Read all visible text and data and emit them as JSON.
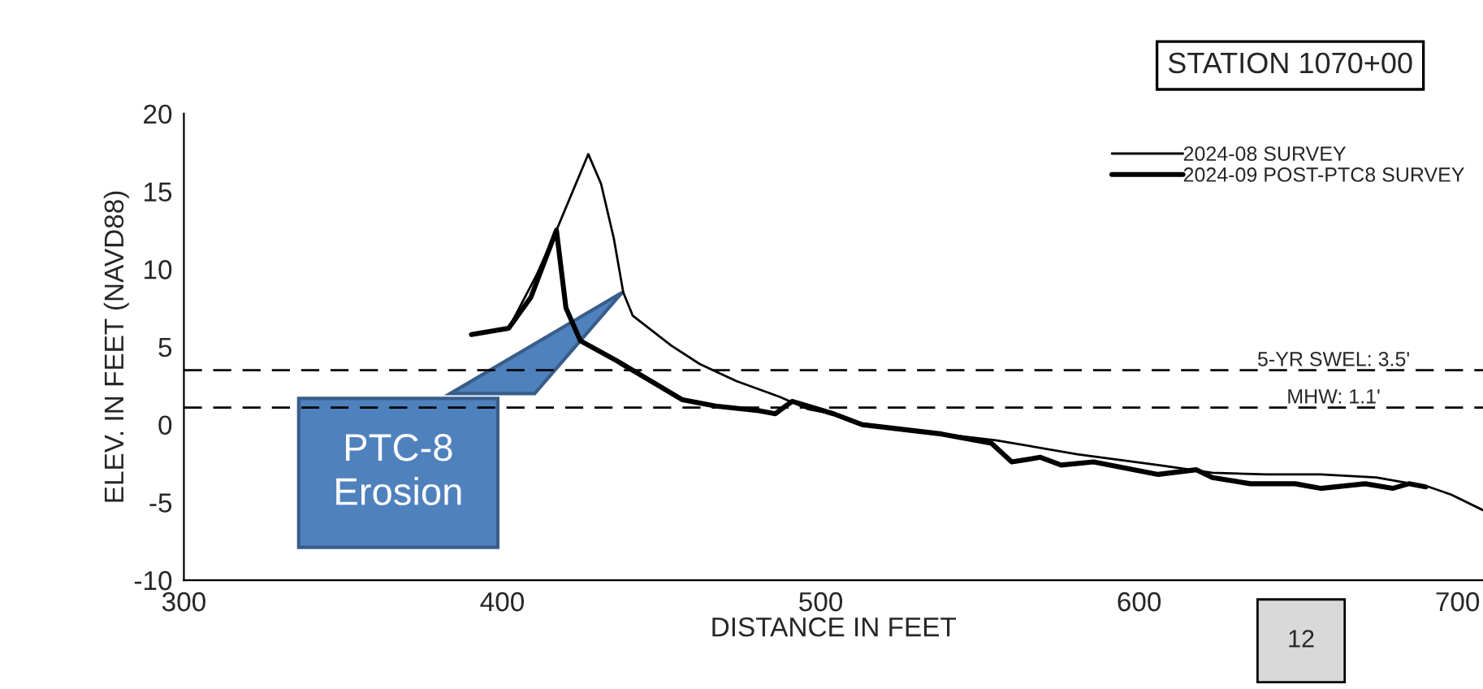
{
  "chart_data": {
    "type": "line",
    "title": "STATION 1070+00",
    "xlabel": "DISTANCE IN FEET",
    "ylabel": "ELEV. IN FEET (NAVD88)",
    "xlim": [
      300,
      708
    ],
    "xticks": [
      300,
      400,
      500,
      600,
      700
    ],
    "ylim": [
      -10,
      20
    ],
    "yticks": [
      -10,
      -5,
      0,
      5,
      10,
      15,
      20
    ],
    "grid": false,
    "legend": "top right",
    "line_style": "solid",
    "marker": "none",
    "series": [
      {
        "name": "2024-08 SURVEY",
        "color": "#000000",
        "x": [
          390.3,
          402,
          410.7,
          417,
          427,
          431,
          435,
          438,
          441,
          453,
          462,
          473.5,
          487,
          496,
          504,
          513,
          538,
          555,
          580.6,
          606,
          623,
          640,
          657,
          674.5,
          691,
          698,
          708
        ],
        "values": [
          5.8,
          6.2,
          9.6,
          12.5,
          17.4,
          15.5,
          12.0,
          8.5,
          7.0,
          5.1,
          3.9,
          2.8,
          1.8,
          1.0,
          0.7,
          0.0,
          -0.6,
          -1.0,
          -1.9,
          -2.6,
          -3.1,
          -3.2,
          -3.2,
          -3.4,
          -4.0,
          -4.5,
          -5.5
        ]
      },
      {
        "name": "2024-09 POST-PTC8 SURVEY",
        "color": "#000000",
        "x": [
          390.3,
          402,
          409,
          417,
          420,
          424.5,
          436,
          445,
          456.6,
          467,
          480.6,
          485.7,
          491,
          504,
          513,
          538,
          553.6,
          560,
          569,
          575.5,
          585.7,
          606,
          618,
          623,
          635,
          649,
          657,
          671,
          679.6,
          684.7,
          690
        ],
        "values": [
          5.8,
          6.2,
          8.2,
          12.5,
          7.5,
          5.4,
          4.1,
          3.0,
          1.6,
          1.2,
          0.9,
          0.7,
          1.5,
          0.7,
          0.0,
          -0.6,
          -1.2,
          -2.4,
          -2.1,
          -2.6,
          -2.4,
          -3.2,
          -2.9,
          -3.4,
          -3.8,
          -3.8,
          -4.1,
          -3.8,
          -4.1,
          -3.8,
          -4.0
        ]
      }
    ],
    "ref_lines": [
      {
        "axis": "y",
        "value": 3.5,
        "label": "5-YR SWEL: 3.5'",
        "line_style": "dashed",
        "color": "#000000"
      },
      {
        "axis": "y",
        "value": 1.1,
        "label": "MHW: 1.1'",
        "line_style": "dashed",
        "color": "#000000"
      }
    ],
    "annotations": [
      "PTC-8\nErosion",
      "12"
    ]
  }
}
